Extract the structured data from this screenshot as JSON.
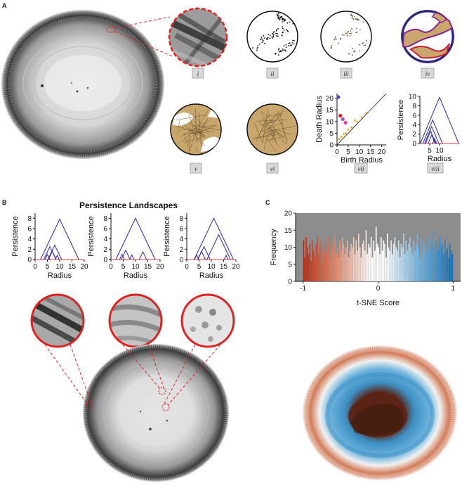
{
  "panels": {
    "A": {
      "letter": "A",
      "roman_labels": [
        "i",
        "ii",
        "iii",
        "iv",
        "v",
        "vi",
        "vii",
        "viii"
      ],
      "pd_xlabel": "Birth Radius",
      "pd_ylabel": "Death Radius",
      "pl_xlabel": "Radius",
      "pl_ylabel": "Persistence"
    },
    "B": {
      "letter": "B",
      "title": "Persistence Landscapes",
      "xlabel": "Radius",
      "ylabel": "Persistence"
    },
    "C": {
      "letter": "C",
      "xlabel": "t-SNE Score",
      "ylabel": "Frequency"
    }
  },
  "colors": {
    "landscape_line": "#2b2ba0",
    "baseline": "#e23b3b",
    "callout": "#e02020",
    "pd_points": "#f0a020",
    "cell_fill": "#c9a66b",
    "hist_bg": "#8c8c8c",
    "score_neg": "#b52a10",
    "score_pos": "#1a6fb0"
  },
  "chart_data": [
    {
      "id": "A-vii",
      "type": "scatter",
      "xlabel": "Birth Radius",
      "ylabel": "Death Radius",
      "xlim": [
        0,
        22
      ],
      "ylim": [
        0,
        22
      ],
      "xticks": [
        "0",
        "5",
        "10",
        "15",
        "20"
      ],
      "yticks": [
        "0",
        "5",
        "10",
        "15",
        "20"
      ],
      "xtick_values": [
        0,
        5,
        10,
        15,
        20
      ],
      "ytick_values": [
        0,
        5,
        10,
        15,
        20
      ],
      "diagonal": true,
      "points": [
        {
          "x": 0.6,
          "y": 20.5,
          "color": "#3b4fc8"
        },
        {
          "x": 1.5,
          "y": 12.5,
          "color": "#d62020"
        },
        {
          "x": 2.6,
          "y": 11.0,
          "color": "#9b59b6"
        },
        {
          "x": 3.8,
          "y": 9.5,
          "color": "#e040a0"
        },
        {
          "x": 1.0,
          "y": 2.5,
          "color": "#f0a020"
        },
        {
          "x": 2.0,
          "y": 3.4,
          "color": "#f0a020"
        },
        {
          "x": 3.0,
          "y": 4.6,
          "color": "#f0a020"
        },
        {
          "x": 4.0,
          "y": 5.0,
          "color": "#f0a020"
        },
        {
          "x": 5.0,
          "y": 6.5,
          "color": "#f0a020"
        },
        {
          "x": 6.5,
          "y": 7.5,
          "color": "#f0a020"
        },
        {
          "x": 8.0,
          "y": 10.5,
          "color": "#f0a020"
        },
        {
          "x": 9.0,
          "y": 9.8,
          "color": "#f0a020"
        },
        {
          "x": 11.0,
          "y": 11.8,
          "color": "#f0a020"
        },
        {
          "x": 13.0,
          "y": 13.6,
          "color": "#f0a020"
        }
      ]
    },
    {
      "id": "A-viii",
      "type": "line",
      "xlabel": "Radius",
      "ylabel": "Persistence",
      "xlim": [
        0,
        20
      ],
      "ylim": [
        0,
        10
      ],
      "xticks": [
        "5",
        "10"
      ],
      "yticks": [
        "0",
        "2",
        "4",
        "6",
        "8",
        "10"
      ],
      "xtick_values": [
        5,
        10
      ],
      "ytick_values": [
        0,
        2,
        4,
        6,
        8,
        10
      ],
      "peaks": [
        {
          "center": 10.0,
          "height": 9.8
        },
        {
          "center": 6.5,
          "height": 5.0
        },
        {
          "center": 6.0,
          "height": 3.6
        },
        {
          "center": 5.5,
          "height": 2.6
        },
        {
          "center": 6.0,
          "height": 1.8
        },
        {
          "center": 7.5,
          "height": 1.0
        }
      ]
    },
    {
      "id": "B-1",
      "type": "line",
      "xlabel": "Radius",
      "ylabel": "Persistence",
      "xlim": [
        0,
        20
      ],
      "ylim": [
        0,
        9
      ],
      "xticks": [
        "0",
        "5",
        "10",
        "15",
        "20"
      ],
      "yticks": [
        "0",
        "2",
        "4",
        "6",
        "8"
      ],
      "xtick_values": [
        0,
        5,
        10,
        15,
        20
      ],
      "ytick_values": [
        0,
        2,
        4,
        6,
        8
      ],
      "peaks": [
        {
          "center": 10.0,
          "height": 7.8
        },
        {
          "center": 8.0,
          "height": 2.8
        },
        {
          "center": 6.0,
          "height": 2.5
        },
        {
          "center": 7.0,
          "height": 1.6
        },
        {
          "center": 5.0,
          "height": 1.0
        },
        {
          "center": 9.0,
          "height": 0.8
        }
      ]
    },
    {
      "id": "B-2",
      "type": "line",
      "xlabel": "Radius",
      "ylabel": "Persistence",
      "xlim": [
        0,
        20
      ],
      "ylim": [
        0,
        9
      ],
      "xticks": [
        "0",
        "5",
        "10",
        "15",
        "20"
      ],
      "yticks": [
        "0",
        "2",
        "4",
        "6",
        "8"
      ],
      "xtick_values": [
        0,
        5,
        10,
        15,
        20
      ],
      "ytick_values": [
        0,
        2,
        4,
        6,
        8
      ],
      "peaks": [
        {
          "center": 10.0,
          "height": 8.0
        },
        {
          "center": 6.0,
          "height": 1.8
        },
        {
          "center": 13.0,
          "height": 1.5
        },
        {
          "center": 4.5,
          "height": 1.0
        },
        {
          "center": 8.5,
          "height": 0.9
        }
      ]
    },
    {
      "id": "B-3",
      "type": "line",
      "xlabel": "Radius",
      "ylabel": "Persistence",
      "xlim": [
        0,
        20
      ],
      "ylim": [
        0,
        9
      ],
      "xticks": [
        "0",
        "5",
        "10",
        "15",
        "20"
      ],
      "yticks": [
        "0",
        "2",
        "4",
        "6",
        "8"
      ],
      "xtick_values": [
        0,
        5,
        10,
        15,
        20
      ],
      "ytick_values": [
        0,
        2,
        4,
        6,
        8
      ],
      "peaks": [
        {
          "center": 11.0,
          "height": 8.0
        },
        {
          "center": 13.0,
          "height": 4.8
        },
        {
          "center": 7.0,
          "height": 2.5
        },
        {
          "center": 6.0,
          "height": 1.6
        },
        {
          "center": 4.0,
          "height": 0.9
        },
        {
          "center": 16.0,
          "height": 0.8
        }
      ]
    },
    {
      "id": "C",
      "type": "bar",
      "xlabel": "t-SNE Score",
      "ylabel": "Frequency",
      "xlim": [
        -1.1,
        1.1
      ],
      "ylim": [
        0,
        20
      ],
      "xticks": [
        "-1",
        "0",
        "1"
      ],
      "yticks": [
        "0",
        "5",
        "10",
        "15",
        "20"
      ],
      "xtick_values": [
        -1,
        0,
        1
      ],
      "ytick_values": [
        0,
        5,
        10,
        15,
        20
      ],
      "bins": 120,
      "values": [
        12,
        7,
        13,
        10,
        8,
        11,
        6,
        12,
        9,
        7,
        11,
        13,
        8,
        10,
        12,
        6,
        9,
        11,
        8,
        13,
        10,
        7,
        12,
        9,
        11,
        14,
        8,
        10,
        7,
        12,
        9,
        13,
        11,
        8,
        10,
        12,
        7,
        9,
        11,
        10,
        13,
        8,
        12,
        9,
        14,
        10,
        7,
        11,
        12,
        9,
        15,
        8,
        11,
        10,
        13,
        7,
        12,
        9,
        16,
        11,
        10,
        8,
        13,
        9,
        12,
        11,
        7,
        14,
        10,
        9,
        12,
        8,
        11,
        13,
        10,
        9,
        12,
        7,
        11,
        10,
        14,
        8,
        12,
        9,
        11,
        13,
        10,
        8,
        12,
        9,
        11,
        14,
        10,
        7,
        13,
        9,
        12,
        11,
        8,
        10,
        13,
        9,
        12,
        15,
        10,
        8,
        11,
        12,
        9,
        13,
        10,
        11,
        8,
        12,
        9,
        10,
        7,
        11,
        9,
        8
      ]
    }
  ]
}
